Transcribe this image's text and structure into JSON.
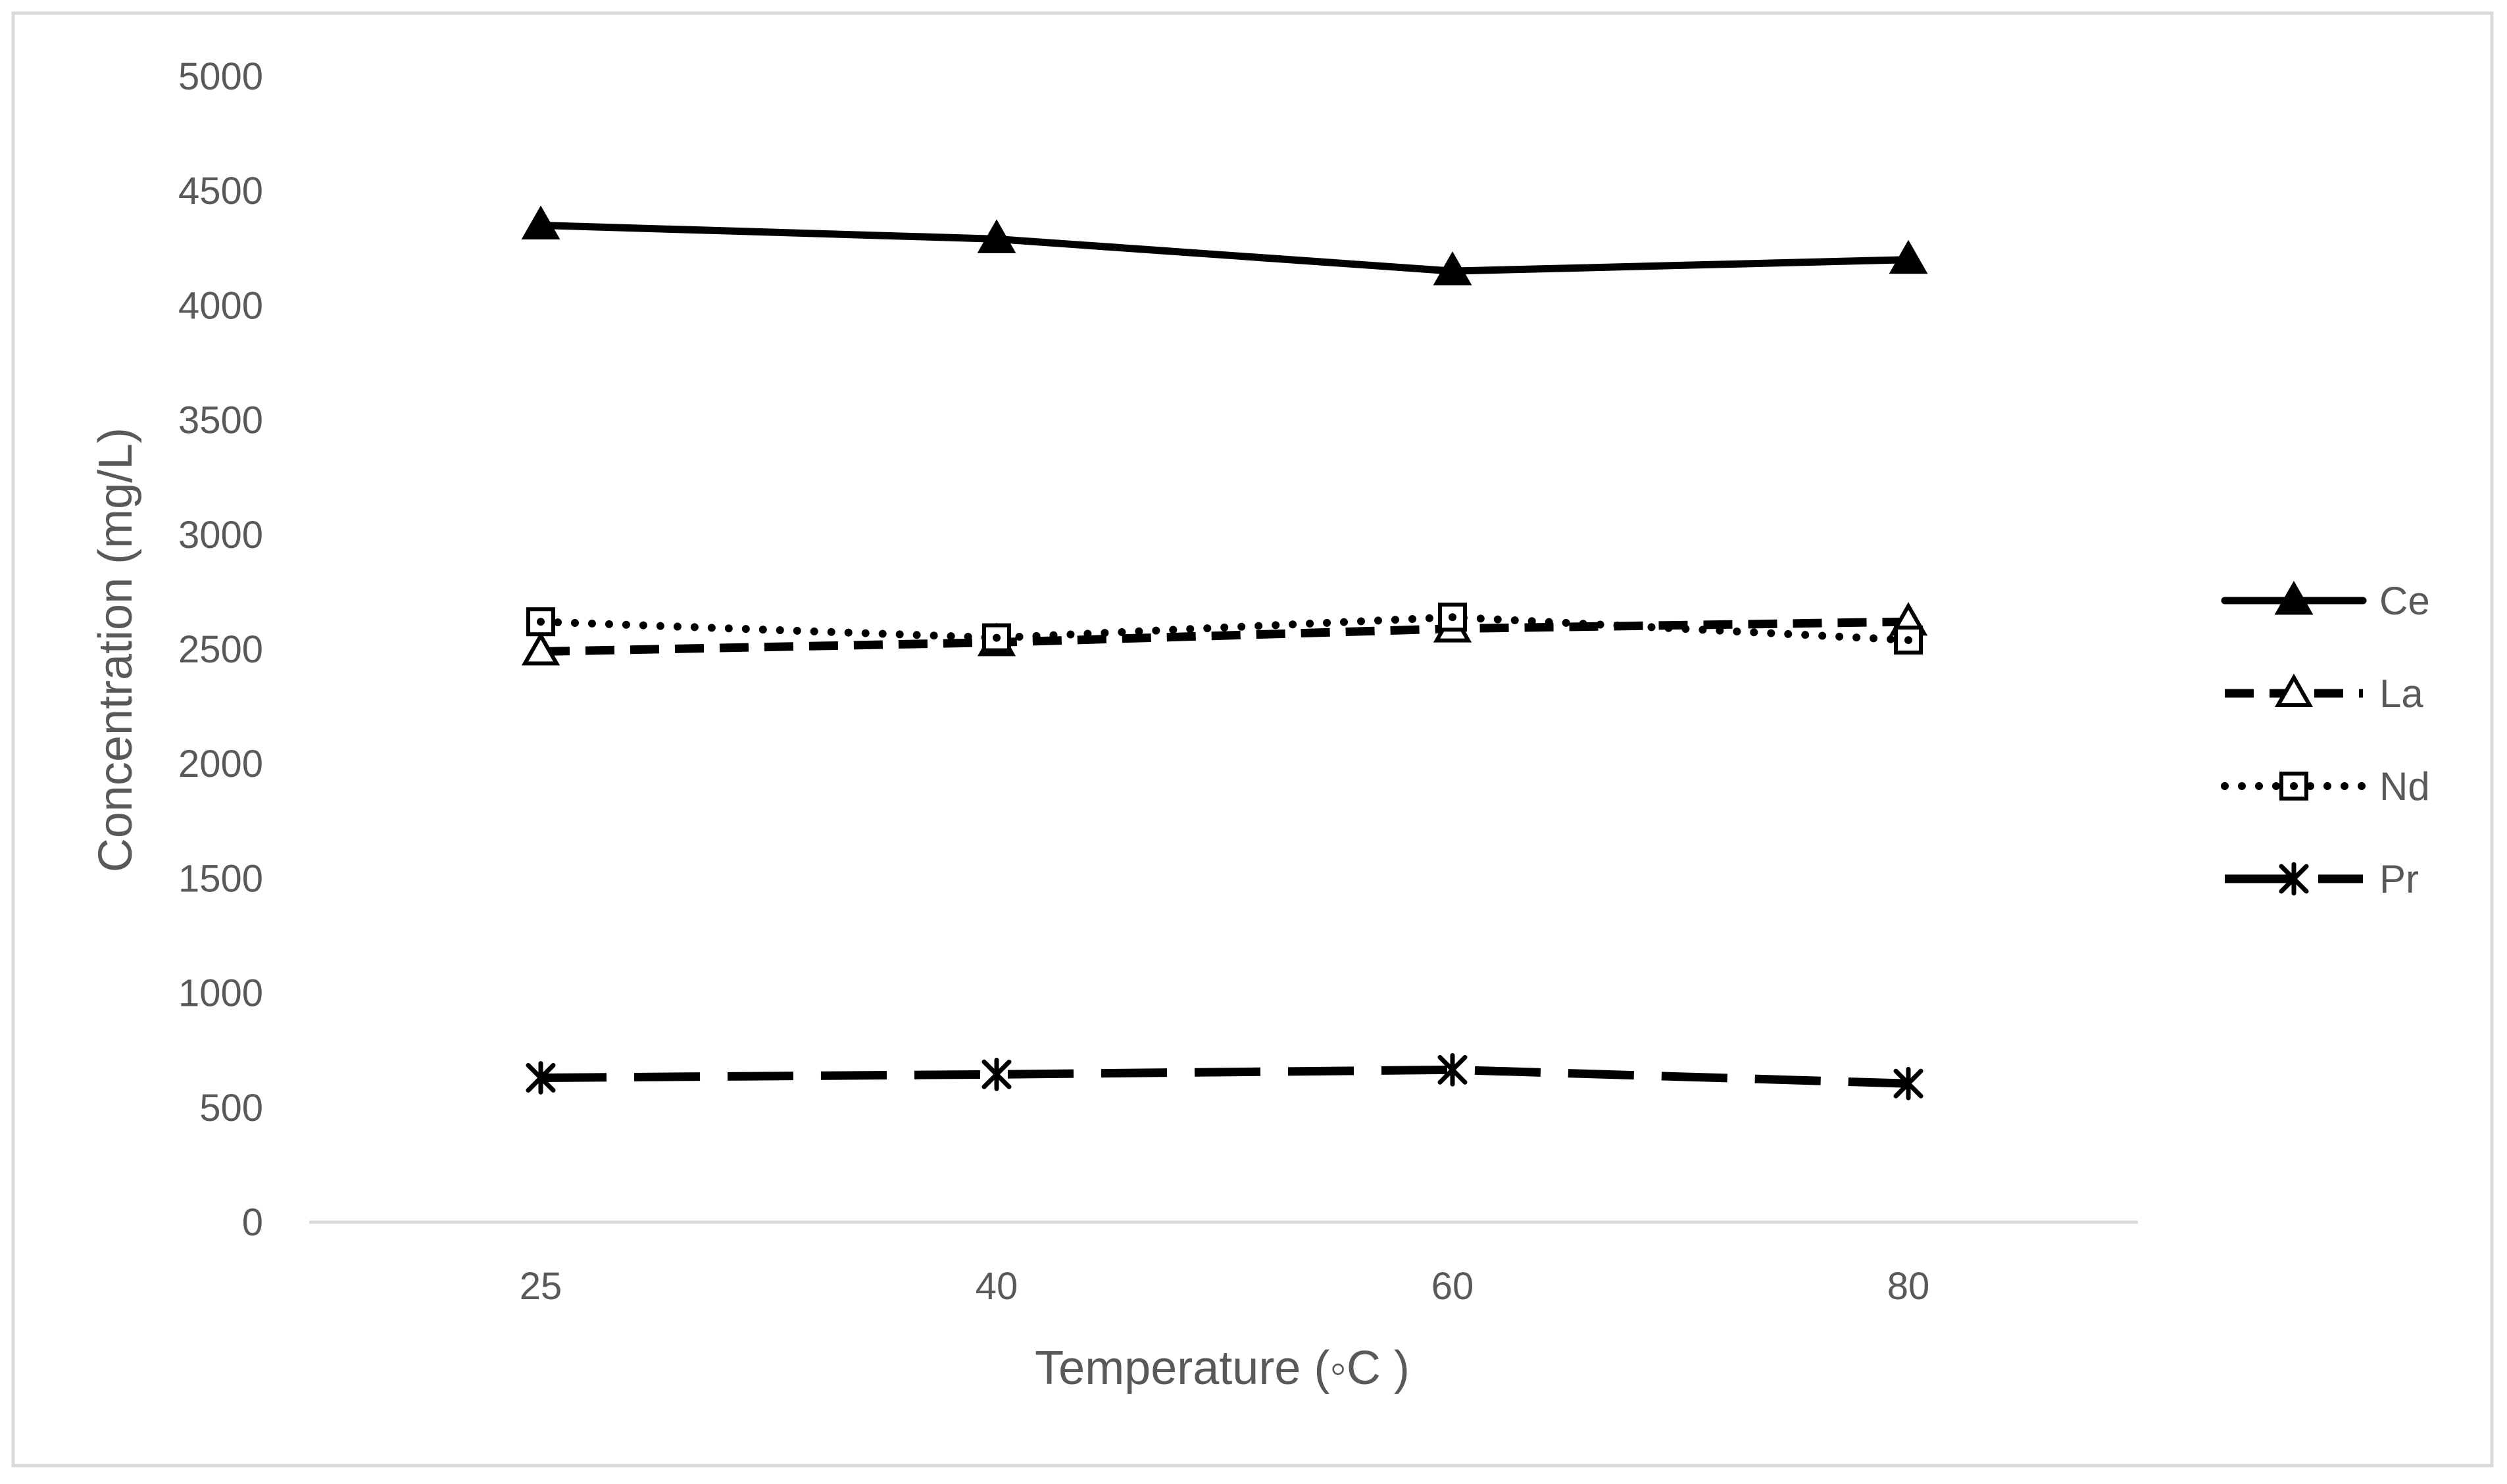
{
  "chart_data": {
    "type": "line",
    "title": "",
    "xlabel": "Temperature (◦C )",
    "ylabel": "Concentration (mg/L)",
    "categories": [
      "25",
      "40",
      "60",
      "80"
    ],
    "ylim": [
      0,
      5000
    ],
    "yticks": [
      "0",
      "500",
      "1000",
      "1500",
      "2000",
      "2500",
      "3000",
      "3500",
      "4000",
      "4500",
      "5000"
    ],
    "grid": false,
    "legend_position": "right",
    "series": [
      {
        "name": "Ce",
        "values": [
          4350,
          4290,
          4150,
          4200
        ],
        "marker": "filled-triangle",
        "line_style": "solid"
      },
      {
        "name": "La",
        "values": [
          2490,
          2530,
          2590,
          2620
        ],
        "marker": "open-triangle",
        "line_style": "dashed"
      },
      {
        "name": "Nd",
        "values": [
          2620,
          2550,
          2640,
          2540
        ],
        "marker": "open-square-dot",
        "line_style": "dotted"
      },
      {
        "name": "Pr",
        "values": [
          630,
          645,
          665,
          605
        ],
        "marker": "asterisk",
        "line_style": "long-dash"
      }
    ],
    "colors": {
      "series": "#000000",
      "axis": "#d9d9d9",
      "text": "#595959",
      "border": "#d9d9d9"
    }
  }
}
